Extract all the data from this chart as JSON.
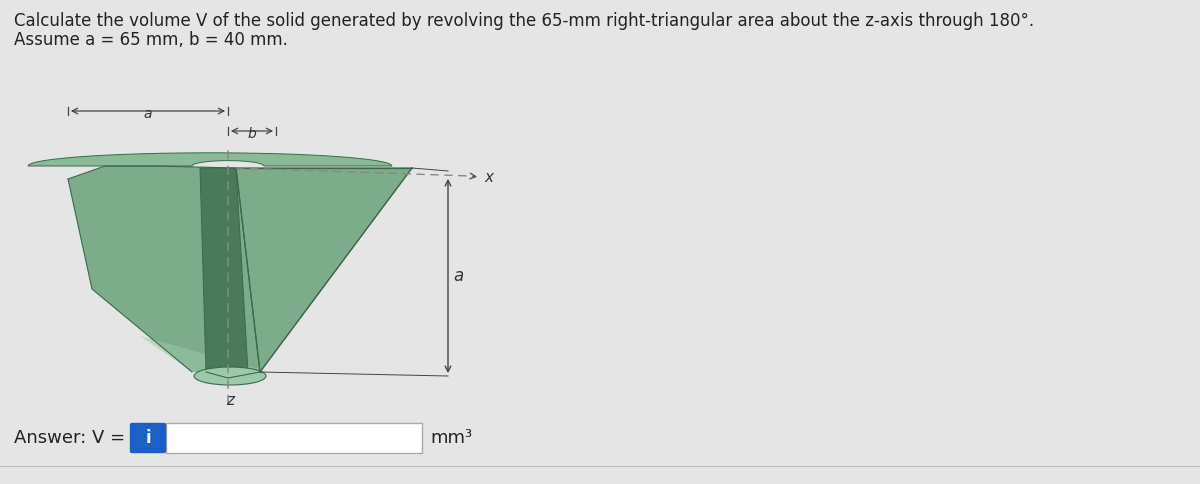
{
  "title_line1": "Calculate the volume V of the solid generated by revolving the 65-mm right-triangular area about the z-axis through 180°.",
  "title_line2": "Assume a = 65 mm, b = 40 mm.",
  "bg_color": "#e5e5e5",
  "solid_fill": "#7dac8a",
  "solid_fill_light": "#9ec8aa",
  "solid_fill_dark": "#5a8a6a",
  "solid_fill_inner": "#4a7a5a",
  "solid_edge": "#3a6a4a",
  "text_color": "#222222",
  "axis_dash_color": "#888888",
  "dim_line_color": "#444444",
  "answer_box_color": "#1a5fc8",
  "answer_text": "Answer: V = ",
  "unit_text": "mm³",
  "figure_width": 12.0,
  "figure_height": 4.84,
  "dpi": 100
}
